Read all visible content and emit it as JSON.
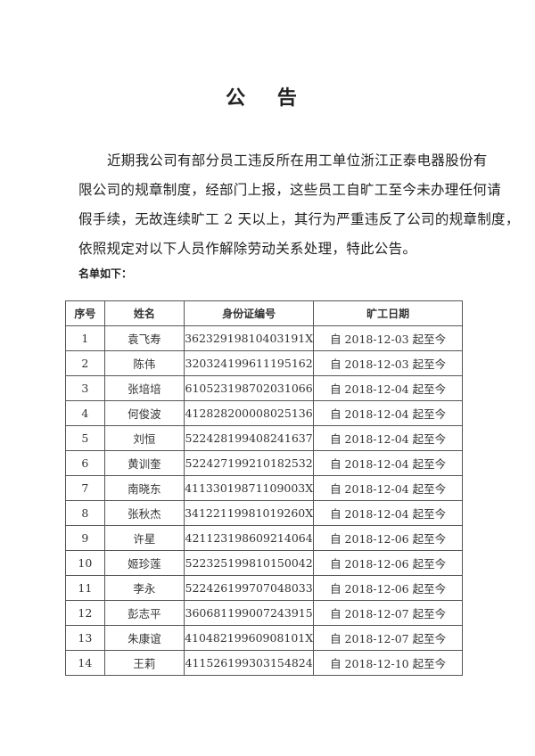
{
  "document": {
    "title": "公 告",
    "paragraph_lines": [
      "近期我公司有部分员工违反所在用工单位浙江正泰电器股份有",
      "限公司的规章制度，经部门上报，这些员工自旷工至今未办理任何请",
      "假手续，无故连续旷工 2 天以上，其行为严重违反了公司的规章制度，",
      "依照规定对以下人员作解除劳动关系处理，特此公告。"
    ],
    "list_label": "名单如下：",
    "table": {
      "headers": [
        "序号",
        "姓名",
        "身份证编号",
        "旷工日期"
      ],
      "rows": [
        [
          "1",
          "袁飞寿",
          "36232919810403191X",
          "自 2018-12-03 起至今"
        ],
        [
          "2",
          "陈伟",
          "320324199611195162",
          "自 2018-12-03 起至今"
        ],
        [
          "3",
          "张培培",
          "610523198702031066",
          "自 2018-12-04 起至今"
        ],
        [
          "4",
          "何俊波",
          "412828200008025136",
          "自 2018-12-04 起至今"
        ],
        [
          "5",
          "刘恒",
          "522428199408241637",
          "自 2018-12-04 起至今"
        ],
        [
          "6",
          "黄训奎",
          "522427199210182532",
          "自 2018-12-04 起至今"
        ],
        [
          "7",
          "南晓东",
          "41133019871109003X",
          "自 2018-12-04 起至今"
        ],
        [
          "8",
          "张秋杰",
          "34122119981019260X",
          "自 2018-12-04 起至今"
        ],
        [
          "9",
          "许星",
          "421123198609214064",
          "自 2018-12-06 起至今"
        ],
        [
          "10",
          "姬珍莲",
          "522325199810150042",
          "自 2018-12-06 起至今"
        ],
        [
          "11",
          "李永",
          "522426199707048033",
          "自 2018-12-06 起至今"
        ],
        [
          "12",
          "彭志平",
          "360681199007243915",
          "自 2018-12-07 起至今"
        ],
        [
          "13",
          "朱康谊",
          "41048219960908101X",
          "自 2018-12-07 起至今"
        ],
        [
          "14",
          "王莉",
          "411526199303154824",
          "自 2018-12-10 起至今"
        ]
      ]
    }
  }
}
